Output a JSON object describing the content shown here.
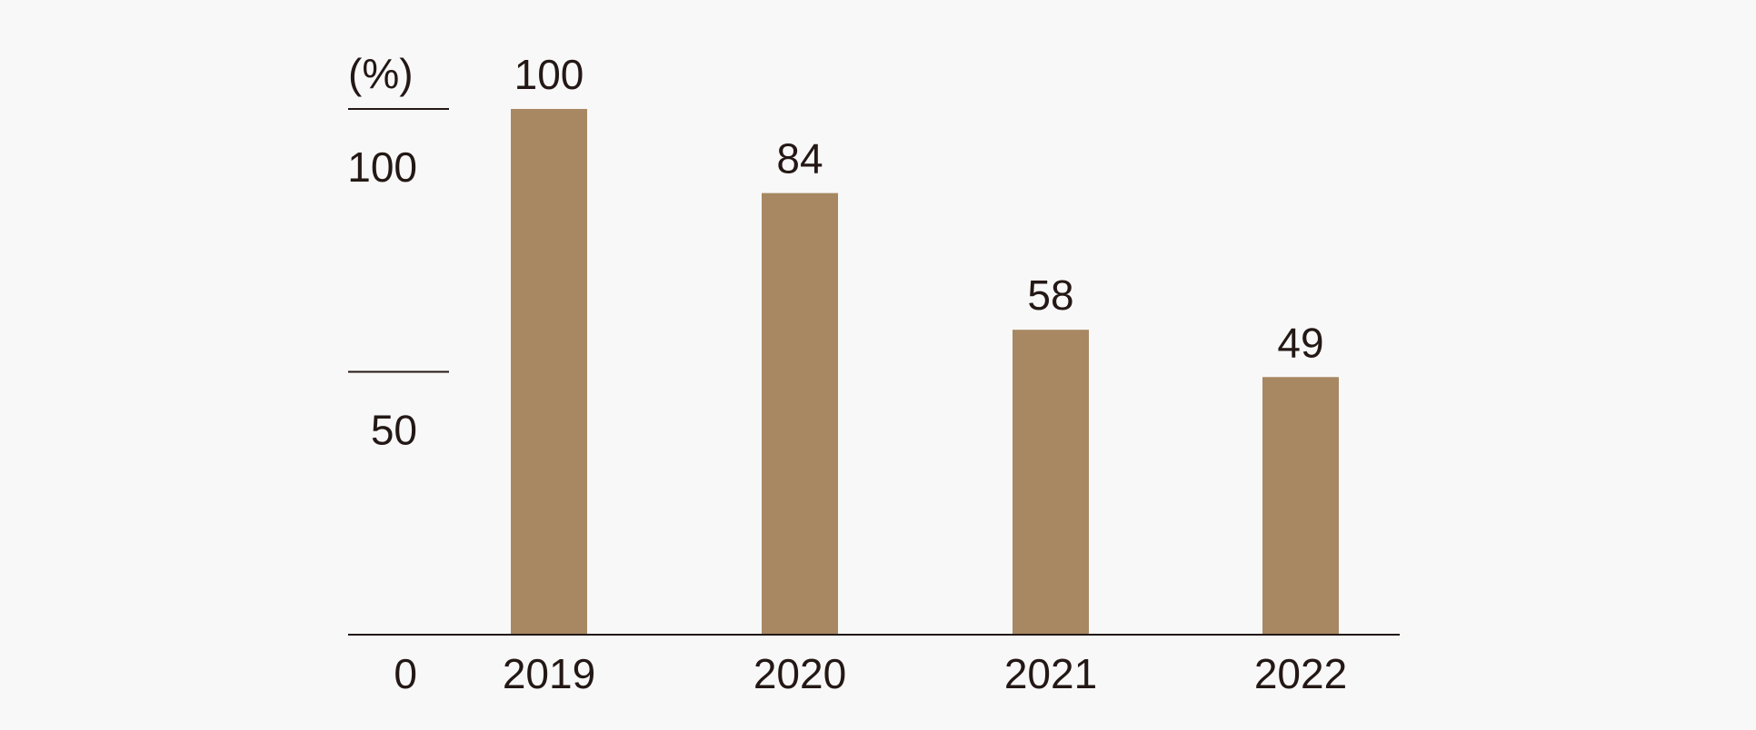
{
  "chart_data": {
    "type": "bar",
    "categories": [
      "2019",
      "2020",
      "2021",
      "2022"
    ],
    "values": [
      100,
      84,
      58,
      49
    ],
    "data_labels": [
      "100",
      "84",
      "58",
      "49"
    ],
    "title": "",
    "xlabel": "",
    "ylabel": "(%)",
    "ylim": [
      0,
      100
    ],
    "yticks": [
      0,
      50,
      100
    ],
    "ytick_labels": [
      "0",
      "50",
      "100"
    ],
    "grid": false,
    "legend": "none",
    "colors": {
      "bar": "#a88862",
      "text": "#231815",
      "axis": "#231815",
      "background": "#f8f8f8"
    }
  }
}
